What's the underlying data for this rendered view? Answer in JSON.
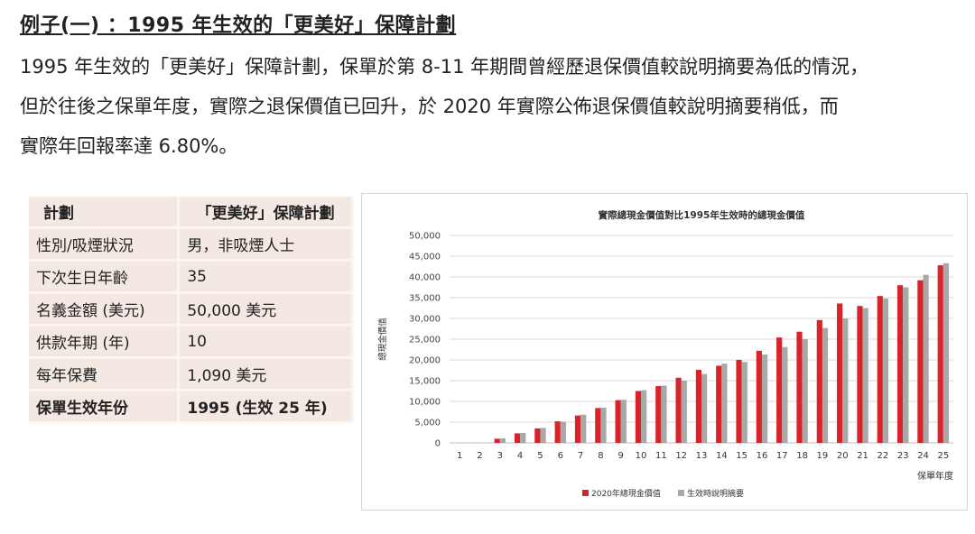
{
  "heading": "例子(一) ：1995 年生效的「更美好」保障計劃",
  "paragraph_lines": [
    "1995 年生效的「更美好」保障計劃，保單於第 8-11 年期間曾經歷退保價值較說明摘要為低的情況，",
    "但於往後之保單年度，實際之退保價值已回升，於 2020 年實際公佈退保價值較說明摘要稍低，而",
    "實際年回報率達 6.80%。"
  ],
  "table": {
    "rows": [
      {
        "label": "計劃",
        "value": "「更美好」保障計劃"
      },
      {
        "label": "性別/吸煙狀況",
        "value": "男，非吸煙人士"
      },
      {
        "label": "下次生日年齡",
        "value": "35"
      },
      {
        "label": "名義金額 (美元)",
        "value": "50,000 美元"
      },
      {
        "label": "供款年期 (年)",
        "value": "10"
      },
      {
        "label": "每年保費",
        "value": "1,090 美元"
      },
      {
        "label": "保單生效年份",
        "value": "1995 (生效 25 年)"
      }
    ]
  },
  "colors": {
    "series_actual": "#d8232a",
    "series_illustrated": "#a8a8a8"
  },
  "chart_data": {
    "type": "bar",
    "title": "實際總現金價值對比1995年生效時的總現金價值",
    "xlabel": "保單年度",
    "ylabel": "總現金價值",
    "ylim": [
      0,
      50000
    ],
    "yticks": [
      "0",
      "5,000",
      "10,000",
      "15,000",
      "20,000",
      "25,000",
      "30,000",
      "35,000",
      "40,000",
      "45,000",
      "50,000"
    ],
    "grid": true,
    "legend_position": "bottom",
    "categories": [
      "1",
      "2",
      "3",
      "4",
      "5",
      "6",
      "7",
      "8",
      "9",
      "10",
      "11",
      "12",
      "13",
      "14",
      "15",
      "16",
      "17",
      "18",
      "19",
      "20",
      "21",
      "22",
      "23",
      "24",
      "25"
    ],
    "series": [
      {
        "name": "2020年總現金價值",
        "values": [
          0,
          0,
          1000,
          2300,
          3500,
          5200,
          6600,
          8400,
          10300,
          12500,
          13700,
          15700,
          17600,
          18600,
          20000,
          22200,
          25400,
          26800,
          29600,
          33600,
          33000,
          35400,
          38000,
          39200,
          42800
        ]
      },
      {
        "name": "生效時說明摘要",
        "values": [
          0,
          0,
          1100,
          2400,
          3600,
          5100,
          6800,
          8500,
          10400,
          12700,
          13800,
          15000,
          16600,
          19100,
          19500,
          21300,
          23100,
          25000,
          27700,
          30000,
          32500,
          34800,
          37500,
          40500,
          43300
        ]
      }
    ]
  }
}
